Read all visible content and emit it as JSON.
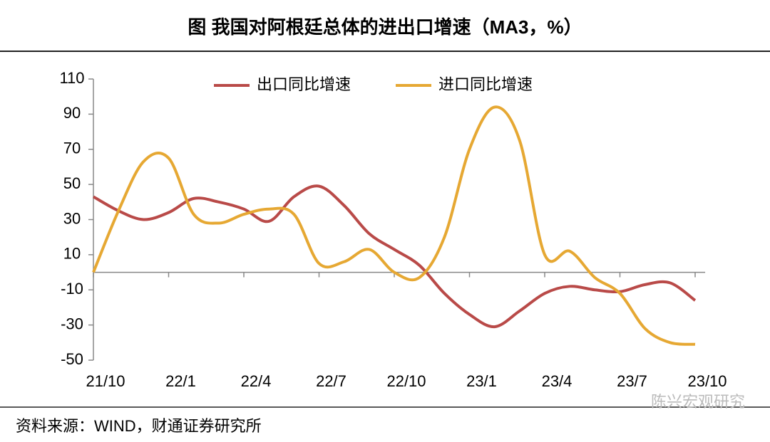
{
  "chart_data": {
    "type": "line",
    "title": "图  我国对阿根廷总体的进出口增速（MA3，%）",
    "source": "资料来源：WIND，财通证券研究所",
    "watermark": "陈兴宏观研究",
    "categories": [
      "21/10",
      null,
      null,
      "22/1",
      null,
      null,
      "22/4",
      null,
      null,
      "22/7",
      null,
      null,
      "22/10",
      null,
      null,
      "23/1",
      null,
      null,
      "23/4",
      null,
      null,
      "23/7",
      null,
      null,
      "23/10"
    ],
    "series": [
      {
        "name": "出口同比增速",
        "color": "#b94a48",
        "values": [
          43,
          35,
          30,
          34,
          42,
          40,
          36,
          29,
          43,
          49,
          38,
          22,
          13,
          4,
          -12,
          -24,
          -31,
          -22,
          -12,
          -8,
          -10,
          -11,
          -7,
          -6,
          -16
        ]
      },
      {
        "name": "进口同比增速",
        "color": "#e6a833",
        "values": [
          0,
          35,
          63,
          65,
          33,
          28,
          33,
          36,
          33,
          5,
          6,
          13,
          0,
          -3,
          20,
          70,
          94,
          75,
          10,
          12,
          -3,
          -12,
          -32,
          -40,
          -41
        ]
      }
    ],
    "ylim": [
      -50,
      110
    ],
    "yticks": [
      -50,
      -30,
      -10,
      10,
      30,
      50,
      70,
      90,
      110
    ],
    "legend": "top"
  }
}
